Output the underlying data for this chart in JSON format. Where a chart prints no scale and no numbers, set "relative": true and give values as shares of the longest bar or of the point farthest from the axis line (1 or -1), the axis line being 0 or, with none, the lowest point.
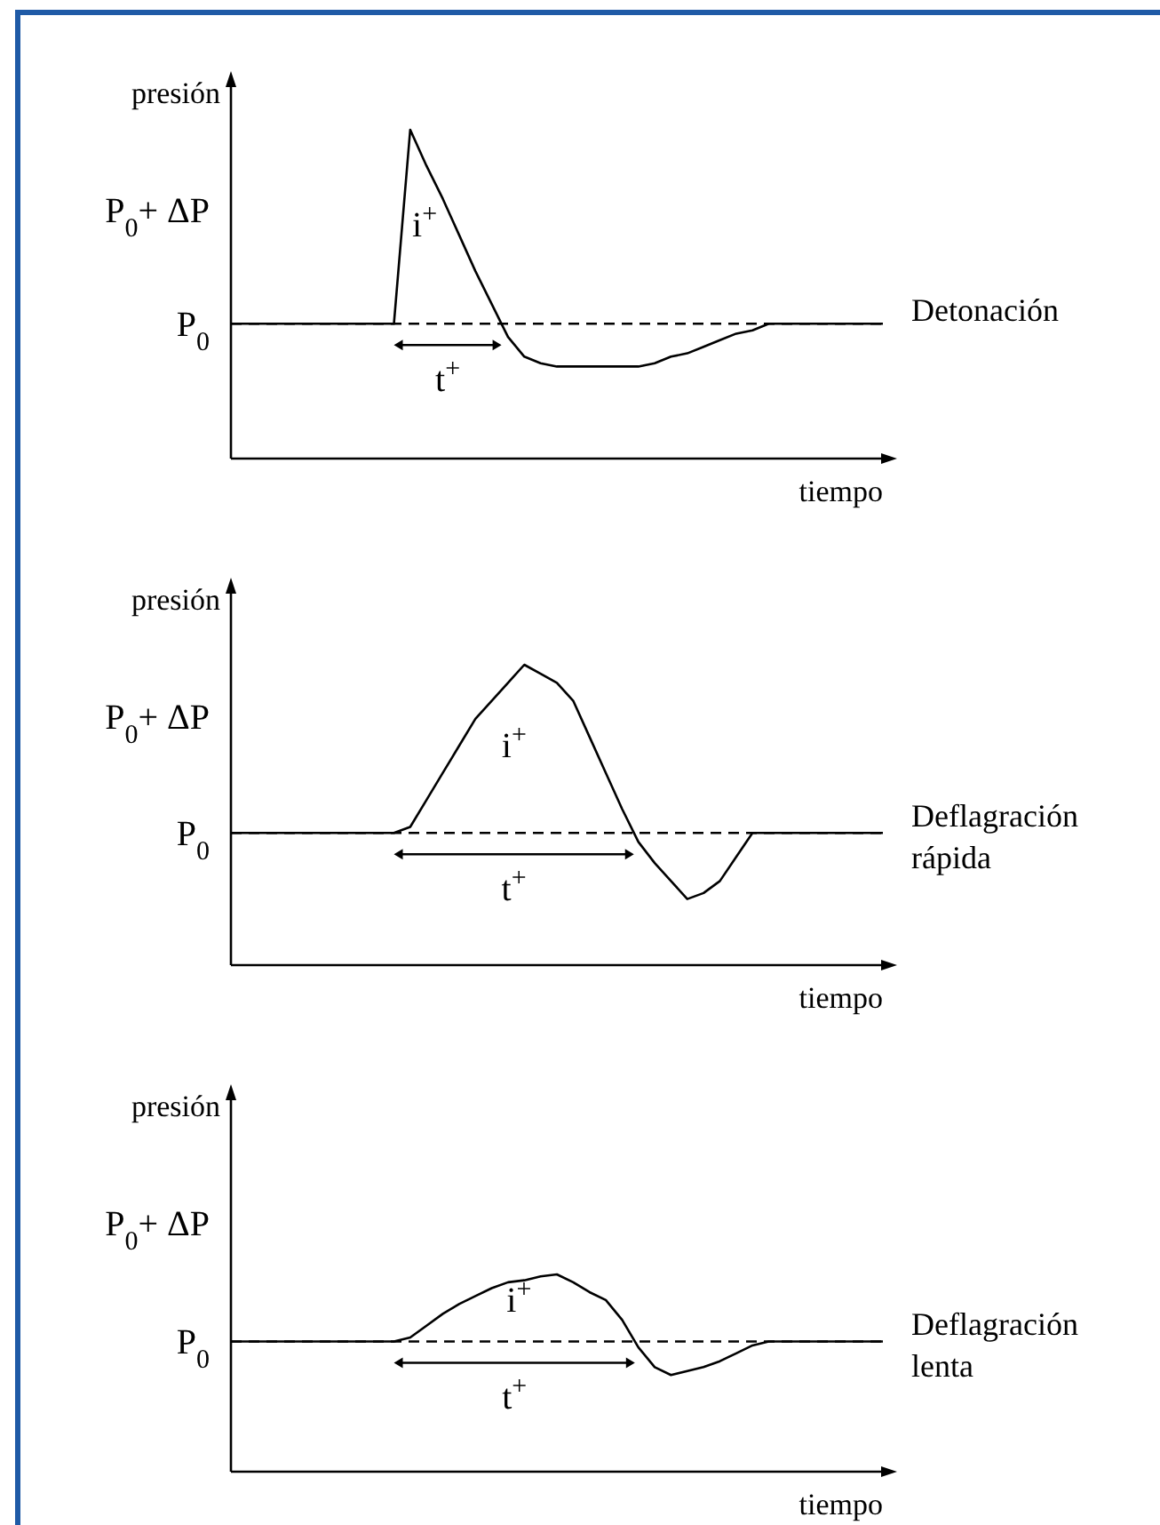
{
  "chart_data": [
    {
      "type": "line",
      "ylabel": "presión",
      "xlabel": "tiempo",
      "relative": true,
      "legend": false,
      "marker": "none",
      "line_style": "solid",
      "categories": [
        null,
        null,
        null,
        null,
        null,
        null,
        null,
        null,
        null,
        null,
        null,
        null,
        null,
        null,
        null,
        null,
        null,
        null,
        null,
        null,
        null,
        null,
        null,
        null,
        null,
        null,
        null,
        null,
        null,
        null,
        null,
        null,
        null,
        null,
        null,
        null,
        null,
        null,
        null,
        null,
        null
      ],
      "series": [
        {
          "name": "Detonación",
          "color": "#000000",
          "values": [
            0.41,
            0.41,
            0.41,
            0.41,
            0.41,
            0.41,
            0.41,
            0.41,
            0.41,
            0.41,
            0.41,
            1,
            0.89,
            0.79,
            0.68,
            0.57,
            0.47,
            0.37,
            0.31,
            0.29,
            0.28,
            0.28,
            0.28,
            0.28,
            0.28,
            0.28,
            0.29,
            0.31,
            0.32,
            0.34,
            0.36,
            0.38,
            0.39,
            0.41,
            0.41,
            0.41,
            0.41,
            0.41,
            0.41,
            0.41,
            0.41
          ]
        }
      ],
      "ref_lines": [
        {
          "axis": "y",
          "value": 0.41,
          "line_style": "dashed"
        }
      ],
      "annotations": [
        "i$^{+}$",
        "t$^{+}$",
        "P$_{0}$",
        "P$_{0}$+ ΔP"
      ]
    },
    {
      "type": "line",
      "ylabel": "presión",
      "xlabel": "tiempo",
      "relative": true,
      "legend": false,
      "marker": "none",
      "line_style": "solid",
      "categories": [
        null,
        null,
        null,
        null,
        null,
        null,
        null,
        null,
        null,
        null,
        null,
        null,
        null,
        null,
        null,
        null,
        null,
        null,
        null,
        null,
        null,
        null,
        null,
        null,
        null,
        null,
        null,
        null,
        null,
        null,
        null,
        null,
        null,
        null,
        null,
        null,
        null,
        null,
        null,
        null,
        null
      ],
      "series": [
        {
          "name": "Deflagración rápida",
          "color": "#000000",
          "values": [
            0.44,
            0.44,
            0.44,
            0.44,
            0.44,
            0.44,
            0.44,
            0.44,
            0.44,
            0.44,
            0.44,
            0.46,
            0.55,
            0.64,
            0.73,
            0.82,
            0.88,
            0.94,
            1,
            0.97,
            0.94,
            0.88,
            0.76,
            0.64,
            0.52,
            0.41,
            0.34,
            0.28,
            0.22,
            0.24,
            0.28,
            0.36,
            0.44,
            0.44,
            0.44,
            0.44,
            0.44,
            0.44,
            0.44,
            0.44,
            0.44
          ]
        }
      ],
      "ref_lines": [
        {
          "axis": "y",
          "value": 0.44,
          "line_style": "dashed"
        }
      ],
      "annotations": [
        "i$^{+}$",
        "t$^{+}$",
        "P$_{0}$",
        "P$_{0}$+ ΔP"
      ]
    },
    {
      "type": "line",
      "ylabel": "presión",
      "xlabel": "tiempo",
      "relative": true,
      "legend": false,
      "marker": "none",
      "line_style": "solid",
      "categories": [
        null,
        null,
        null,
        null,
        null,
        null,
        null,
        null,
        null,
        null,
        null,
        null,
        null,
        null,
        null,
        null,
        null,
        null,
        null,
        null,
        null,
        null,
        null,
        null,
        null,
        null,
        null,
        null,
        null,
        null,
        null,
        null,
        null,
        null,
        null,
        null,
        null,
        null,
        null,
        null,
        null
      ],
      "series": [
        {
          "name": "Deflagración lenta",
          "color": "#000000",
          "values": [
            0.66,
            0.66,
            0.66,
            0.66,
            0.66,
            0.66,
            0.66,
            0.66,
            0.66,
            0.66,
            0.66,
            0.68,
            0.74,
            0.8,
            0.85,
            0.89,
            0.93,
            0.96,
            0.97,
            0.99,
            1,
            0.96,
            0.91,
            0.87,
            0.77,
            0.63,
            0.53,
            0.49,
            0.51,
            0.53,
            0.56,
            0.6,
            0.64,
            0.66,
            0.66,
            0.66,
            0.66,
            0.66,
            0.66,
            0.66,
            0.66
          ]
        }
      ],
      "ref_lines": [
        {
          "axis": "y",
          "value": 0.66,
          "line_style": "dashed"
        }
      ],
      "annotations": [
        "i$^{+}$",
        "t$^{+}$",
        "P$_{0}$",
        "P$_{0}$+ ΔP"
      ]
    }
  ]
}
